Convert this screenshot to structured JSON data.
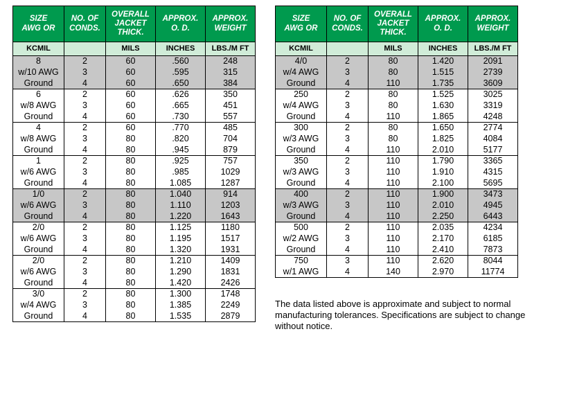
{
  "columns": [
    {
      "header": "SIZE<br>AWG OR",
      "unit": "KCMIL"
    },
    {
      "header": "NO. OF<br>CONDS.",
      "unit": ""
    },
    {
      "header": "OVERALL<br>JACKET<br>THICK.",
      "unit": "MILS"
    },
    {
      "header": "APPROX.<br>O. D.",
      "unit": "INCHES"
    },
    {
      "header": "APPROX.<br>WEIGHT",
      "unit": "LBS./M FT"
    }
  ],
  "colors": {
    "header_bg": "#009a4e",
    "header_fg": "#ffffff",
    "unit_bg": "#d0ecd8",
    "shade_bg": "#c7c7c7",
    "border": "#000000",
    "page_bg": "#ffffff"
  },
  "left_blocks": [
    {
      "shaded": true,
      "size": [
        "8",
        "w/10 AWG",
        "Ground"
      ],
      "conds": [
        "2",
        "3",
        "4"
      ],
      "thick": [
        "60",
        "60",
        "60"
      ],
      "od": [
        ".560",
        ".595",
        ".650"
      ],
      "wt": [
        "248",
        "315",
        "384"
      ]
    },
    {
      "shaded": false,
      "size": [
        "6",
        "w/8 AWG",
        "Ground"
      ],
      "conds": [
        "2",
        "3",
        "4"
      ],
      "thick": [
        "60",
        "60",
        "60"
      ],
      "od": [
        ".626",
        ".665",
        ".730"
      ],
      "wt": [
        "350",
        "451",
        "557"
      ]
    },
    {
      "shaded": false,
      "size": [
        "4",
        "w/8 AWG",
        "Ground"
      ],
      "conds": [
        "2",
        "3",
        "4"
      ],
      "thick": [
        "60",
        "80",
        "80"
      ],
      "od": [
        ".770",
        ".820",
        ".945"
      ],
      "wt": [
        "485",
        "704",
        "879"
      ]
    },
    {
      "shaded": false,
      "size": [
        "1",
        "w/6 AWG",
        "Ground"
      ],
      "conds": [
        "2",
        "3",
        "4"
      ],
      "thick": [
        "80",
        "80",
        "80"
      ],
      "od": [
        ".925",
        ".985",
        "1.085"
      ],
      "wt": [
        "757",
        "1029",
        "1287"
      ]
    },
    {
      "shaded": true,
      "size": [
        "1/0",
        "w/6 AWG",
        "Ground"
      ],
      "conds": [
        "2",
        "3",
        "4"
      ],
      "thick": [
        "80",
        "80",
        "80"
      ],
      "od": [
        "1.040",
        "1.110",
        "1.220"
      ],
      "wt": [
        "914",
        "1203",
        "1643"
      ]
    },
    {
      "shaded": false,
      "size": [
        "2/0",
        "w/6 AWG",
        "Ground"
      ],
      "conds": [
        "2",
        "3",
        "4"
      ],
      "thick": [
        "80",
        "80",
        "80"
      ],
      "od": [
        "1.125",
        "1.195",
        "1.320"
      ],
      "wt": [
        "1180",
        "1517",
        "1931"
      ]
    },
    {
      "shaded": false,
      "size": [
        "2/0",
        "w/6 AWG",
        "Ground"
      ],
      "conds": [
        "2",
        "3",
        "4"
      ],
      "thick": [
        "80",
        "80",
        "80"
      ],
      "od": [
        "1.210",
        "1.290",
        "1.420"
      ],
      "wt": [
        "1409",
        "1831",
        "2426"
      ]
    },
    {
      "shaded": false,
      "size": [
        "3/0",
        "w/4 AWG",
        "Ground"
      ],
      "conds": [
        "2",
        "3",
        "4"
      ],
      "thick": [
        "80",
        "80",
        "80"
      ],
      "od": [
        "1.300",
        "1.385",
        "1.535"
      ],
      "wt": [
        "1748",
        "2249",
        "2879"
      ]
    }
  ],
  "right_blocks": [
    {
      "shaded": true,
      "size": [
        "4/0",
        "w/4 AWG",
        "Ground"
      ],
      "conds": [
        "2",
        "3",
        "4"
      ],
      "thick": [
        "80",
        "80",
        "110"
      ],
      "od": [
        "1.420",
        "1.515",
        "1.735"
      ],
      "wt": [
        "2091",
        "2739",
        "3609"
      ]
    },
    {
      "shaded": false,
      "size": [
        "250",
        "w/4 AWG",
        "Ground"
      ],
      "conds": [
        "2",
        "3",
        "4"
      ],
      "thick": [
        "80",
        "80",
        "110"
      ],
      "od": [
        "1.525",
        "1.630",
        "1.865"
      ],
      "wt": [
        "3025",
        "3319",
        "4248"
      ]
    },
    {
      "shaded": false,
      "size": [
        "300",
        "w/3 AWG",
        "Ground"
      ],
      "conds": [
        "2",
        "3",
        "4"
      ],
      "thick": [
        "80",
        "80",
        "110"
      ],
      "od": [
        "1.650",
        "1.825",
        "2.010"
      ],
      "wt": [
        "2774",
        "4084",
        "5177"
      ]
    },
    {
      "shaded": false,
      "size": [
        "350",
        "w/3 AWG",
        "Ground"
      ],
      "conds": [
        "2",
        "3",
        "4"
      ],
      "thick": [
        "110",
        "110",
        "110"
      ],
      "od": [
        "1.790",
        "1.910",
        "2.100"
      ],
      "wt": [
        "3365",
        "4315",
        "5695"
      ]
    },
    {
      "shaded": true,
      "size": [
        "400",
        "w/3 AWG",
        "Ground"
      ],
      "conds": [
        "2",
        "3",
        "4"
      ],
      "thick": [
        "110",
        "110",
        "110"
      ],
      "od": [
        "1.900",
        "2.010",
        "2.250"
      ],
      "wt": [
        "3473",
        "4945",
        "6443"
      ]
    },
    {
      "shaded": false,
      "size": [
        "500",
        "w/2 AWG",
        "Ground"
      ],
      "conds": [
        "2",
        "3",
        "4"
      ],
      "thick": [
        "110",
        "110",
        "110"
      ],
      "od": [
        "2.035",
        "2.170",
        "2.410"
      ],
      "wt": [
        "4234",
        "6185",
        "7873"
      ]
    },
    {
      "shaded": false,
      "size": [
        "750",
        "w/1 AWG",
        "Ground"
      ],
      "conds": [
        "3",
        "4"
      ],
      "thick": [
        "110",
        "140"
      ],
      "od": [
        "2.620",
        "2.970"
      ],
      "wt": [
        "8044",
        "11774"
      ]
    }
  ],
  "footnote": "The data listed above is approximate and subject to normal manufacturing tolerances. Specifications are subject to change without notice."
}
